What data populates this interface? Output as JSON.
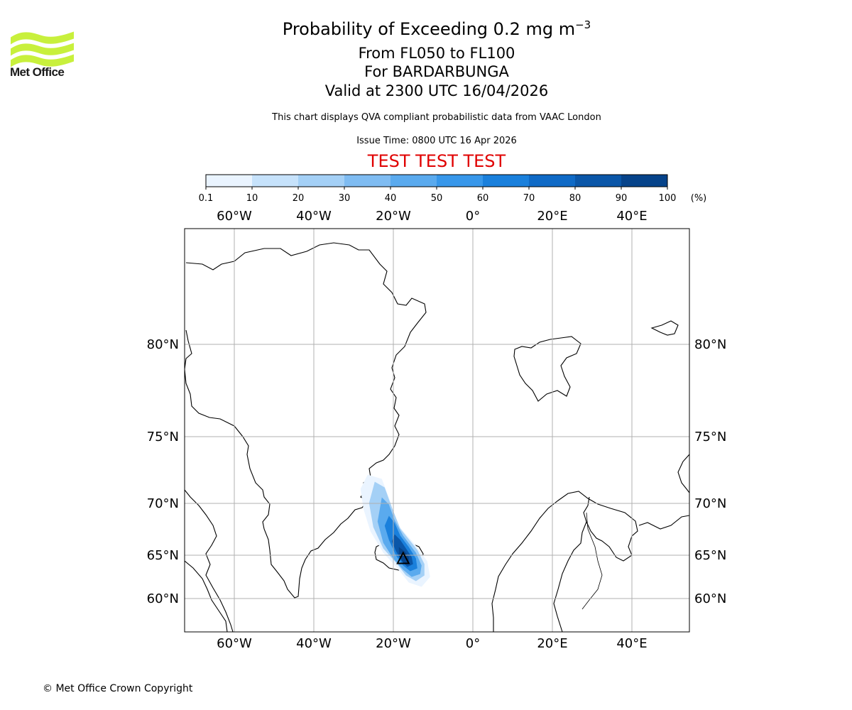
{
  "header": {
    "title_main": "Probability of Exceeding 0.2 mg m",
    "title_sup": "−3",
    "level_range": "From FL050 to FL100",
    "volcano": "For BARDARBUNGA",
    "valid_time": "Valid at 2300 UTC 16/04/2026",
    "subtitle": "This chart displays QVA compliant probabilistic data from VAAC London",
    "issue_time": "Issue Time: 0800 UTC 16 Apr 2026",
    "test_banner": "TEST TEST TEST"
  },
  "logo": {
    "text": "Met Office",
    "color": "#c8f03c"
  },
  "colorbar": {
    "unit": "(%)",
    "ticks": [
      "0.1",
      "10",
      "20",
      "30",
      "40",
      "50",
      "60",
      "70",
      "80",
      "90",
      "100"
    ],
    "colors": [
      "#eaf4ff",
      "#c6e2fb",
      "#a4d0f6",
      "#7fbcf2",
      "#5aaaee",
      "#3797ea",
      "#1a80dc",
      "#0f6ac6",
      "#0a56a8",
      "#06438a",
      "#032b60"
    ]
  },
  "map": {
    "lon_labels": [
      "60°W",
      "40°W",
      "20°W",
      "0°",
      "20°E",
      "40°E"
    ],
    "lon_values": [
      -60,
      -40,
      -20,
      0,
      20,
      40
    ],
    "lat_labels": [
      "80°N",
      "75°N",
      "70°N",
      "65°N",
      "60°N"
    ],
    "lat_values": [
      80,
      75,
      70,
      65,
      60
    ],
    "volcano_lat": 64.63,
    "volcano_lon": -17.53,
    "grid_color": "#b0b0b0"
  },
  "footer": {
    "copyright": "© Met Office Crown Copyright"
  }
}
